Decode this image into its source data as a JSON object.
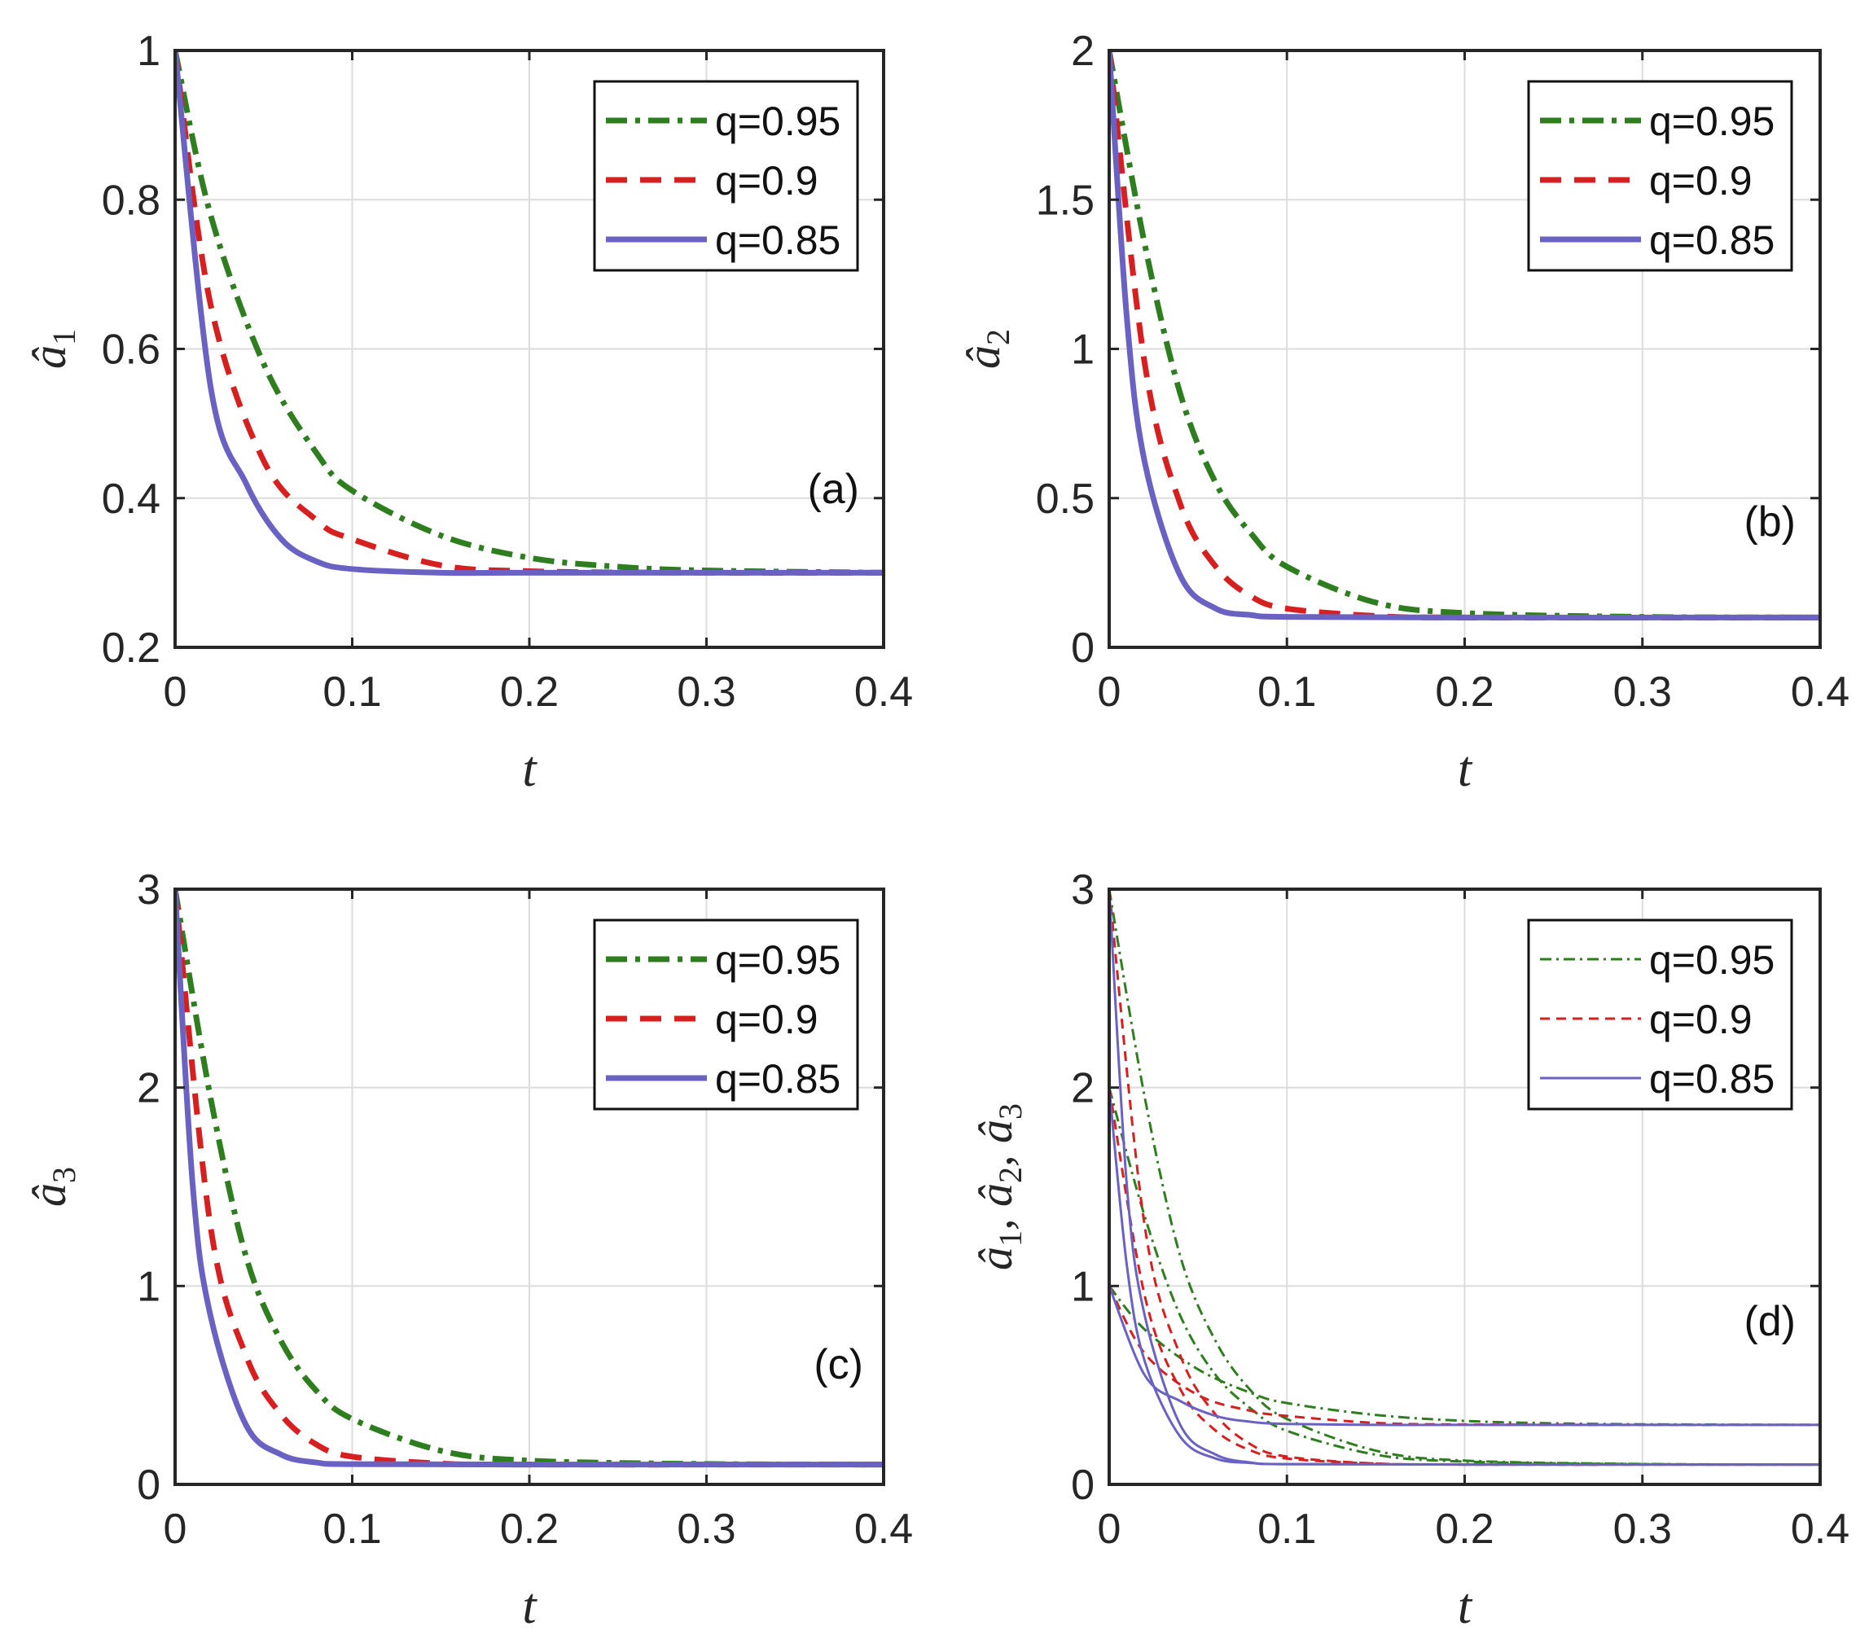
{
  "colors": {
    "q095": "#2e7d1f",
    "q090": "#d62020",
    "q085": "#6a62c2",
    "axis": "#262626",
    "grid": "#dcdcdc"
  },
  "chart_data": [
    {
      "type": "line",
      "panel": "(a)",
      "xlabel": "t",
      "ylabel_base": "â",
      "ylabel_sub": "1",
      "xlim": [
        0,
        0.4
      ],
      "ylim": [
        0.2,
        1
      ],
      "xticks": [
        "0",
        "0.1",
        "0.2",
        "0.3",
        "0.4"
      ],
      "yticks": [
        "0.2",
        "0.4",
        "0.6",
        "0.8",
        "1"
      ],
      "grid": true,
      "legend_position": "top-right",
      "legend": [
        "q=0.95",
        "q=0.9",
        "q=0.85"
      ],
      "series": [
        {
          "name": "q=0.95",
          "style": "dashdot",
          "x": [
            0,
            0.02,
            0.05,
            0.08,
            0.1,
            0.15,
            0.2,
            0.25,
            0.3,
            0.4
          ],
          "y": [
            1,
            0.78,
            0.58,
            0.46,
            0.41,
            0.35,
            0.32,
            0.308,
            0.303,
            0.3
          ]
        },
        {
          "name": "q=0.9",
          "style": "dashed",
          "x": [
            0,
            0.02,
            0.05,
            0.08,
            0.1,
            0.15,
            0.2,
            0.3,
            0.4
          ],
          "y": [
            1,
            0.66,
            0.45,
            0.37,
            0.345,
            0.31,
            0.302,
            0.3,
            0.3
          ]
        },
        {
          "name": "q=0.85",
          "style": "solid",
          "x": [
            0,
            0.02,
            0.04,
            0.06,
            0.08,
            0.1,
            0.15,
            0.2,
            0.4
          ],
          "y": [
            1,
            0.55,
            0.42,
            0.345,
            0.315,
            0.305,
            0.3,
            0.3,
            0.3
          ]
        }
      ]
    },
    {
      "type": "line",
      "panel": "(b)",
      "xlabel": "t",
      "ylabel_base": "â",
      "ylabel_sub": "2",
      "xlim": [
        0,
        0.4
      ],
      "ylim": [
        0,
        2
      ],
      "xticks": [
        "0",
        "0.1",
        "0.2",
        "0.3",
        "0.4"
      ],
      "yticks": [
        "0",
        "0.5",
        "1",
        "1.5",
        "2"
      ],
      "grid": true,
      "legend_position": "top-right",
      "legend": [
        "q=0.95",
        "q=0.9",
        "q=0.85"
      ],
      "series": [
        {
          "name": "q=0.95",
          "style": "dashdot",
          "x": [
            0,
            0.02,
            0.04,
            0.06,
            0.08,
            0.1,
            0.15,
            0.2,
            0.3,
            0.4
          ],
          "y": [
            2,
            1.35,
            0.85,
            0.55,
            0.38,
            0.27,
            0.15,
            0.115,
            0.102,
            0.1
          ]
        },
        {
          "name": "q=0.9",
          "style": "dashed",
          "x": [
            0,
            0.02,
            0.04,
            0.06,
            0.08,
            0.1,
            0.15,
            0.2,
            0.4
          ],
          "y": [
            2,
            0.95,
            0.48,
            0.27,
            0.17,
            0.13,
            0.105,
            0.1,
            0.1
          ]
        },
        {
          "name": "q=0.85",
          "style": "solid",
          "x": [
            0,
            0.01,
            0.02,
            0.04,
            0.06,
            0.08,
            0.1,
            0.2,
            0.4
          ],
          "y": [
            2,
            1.1,
            0.62,
            0.24,
            0.13,
            0.108,
            0.102,
            0.1,
            0.1
          ]
        }
      ]
    },
    {
      "type": "line",
      "panel": "(c)",
      "xlabel": "t",
      "ylabel_base": "â",
      "ylabel_sub": "3",
      "xlim": [
        0,
        0.4
      ],
      "ylim": [
        0,
        3
      ],
      "xticks": [
        "0",
        "0.1",
        "0.2",
        "0.3",
        "0.4"
      ],
      "yticks": [
        "0",
        "1",
        "2",
        "3"
      ],
      "grid": true,
      "legend_position": "top-right",
      "legend": [
        "q=0.95",
        "q=0.9",
        "q=0.85"
      ],
      "series": [
        {
          "name": "q=0.95",
          "style": "dashdot",
          "x": [
            0,
            0.02,
            0.04,
            0.06,
            0.08,
            0.1,
            0.15,
            0.2,
            0.3,
            0.4
          ],
          "y": [
            3,
            1.95,
            1.15,
            0.72,
            0.47,
            0.33,
            0.17,
            0.12,
            0.103,
            0.1
          ]
        },
        {
          "name": "q=0.9",
          "style": "dashed",
          "x": [
            0,
            0.02,
            0.04,
            0.06,
            0.08,
            0.1,
            0.15,
            0.2,
            0.4
          ],
          "y": [
            3,
            1.3,
            0.65,
            0.35,
            0.2,
            0.14,
            0.105,
            0.1,
            0.1
          ]
        },
        {
          "name": "q=0.85",
          "style": "solid",
          "x": [
            0,
            0.01,
            0.02,
            0.04,
            0.06,
            0.08,
            0.1,
            0.2,
            0.4
          ],
          "y": [
            3,
            1.5,
            0.85,
            0.3,
            0.15,
            0.11,
            0.102,
            0.1,
            0.1
          ]
        }
      ]
    },
    {
      "type": "line",
      "panel": "(d)",
      "xlabel": "t",
      "ylabel_parts": [
        "â",
        "1",
        ", â",
        "2",
        ", â",
        "3"
      ],
      "xlim": [
        0,
        0.4
      ],
      "ylim": [
        0,
        3
      ],
      "xticks": [
        "0",
        "0.1",
        "0.2",
        "0.3",
        "0.4"
      ],
      "yticks": [
        "0",
        "1",
        "2",
        "3"
      ],
      "grid": true,
      "legend_position": "top-right",
      "legend": [
        "q=0.95",
        "q=0.9",
        "q=0.85"
      ],
      "series": [
        {
          "name": "q=0.95",
          "variable": "a1",
          "style": "dashdot",
          "x": [
            0,
            0.02,
            0.05,
            0.08,
            0.1,
            0.15,
            0.2,
            0.25,
            0.3,
            0.4
          ],
          "y": [
            1,
            0.78,
            0.58,
            0.46,
            0.41,
            0.35,
            0.32,
            0.308,
            0.303,
            0.3
          ]
        },
        {
          "name": "q=0.95",
          "variable": "a2",
          "style": "dashdot",
          "x": [
            0,
            0.02,
            0.04,
            0.06,
            0.08,
            0.1,
            0.15,
            0.2,
            0.3,
            0.4
          ],
          "y": [
            2,
            1.35,
            0.85,
            0.55,
            0.38,
            0.27,
            0.15,
            0.115,
            0.102,
            0.1
          ]
        },
        {
          "name": "q=0.95",
          "variable": "a3",
          "style": "dashdot",
          "x": [
            0,
            0.02,
            0.04,
            0.06,
            0.08,
            0.1,
            0.15,
            0.2,
            0.3,
            0.4
          ],
          "y": [
            3,
            1.95,
            1.15,
            0.72,
            0.47,
            0.33,
            0.17,
            0.12,
            0.103,
            0.1
          ]
        },
        {
          "name": "q=0.9",
          "variable": "a1",
          "style": "dashed",
          "x": [
            0,
            0.02,
            0.05,
            0.08,
            0.1,
            0.15,
            0.2,
            0.3,
            0.4
          ],
          "y": [
            1,
            0.66,
            0.45,
            0.37,
            0.345,
            0.31,
            0.302,
            0.3,
            0.3
          ]
        },
        {
          "name": "q=0.9",
          "variable": "a2",
          "style": "dashed",
          "x": [
            0,
            0.02,
            0.04,
            0.06,
            0.08,
            0.1,
            0.15,
            0.2,
            0.4
          ],
          "y": [
            2,
            0.95,
            0.48,
            0.27,
            0.17,
            0.13,
            0.105,
            0.1,
            0.1
          ]
        },
        {
          "name": "q=0.9",
          "variable": "a3",
          "style": "dashed",
          "x": [
            0,
            0.02,
            0.04,
            0.06,
            0.08,
            0.1,
            0.15,
            0.2,
            0.4
          ],
          "y": [
            3,
            1.3,
            0.65,
            0.35,
            0.2,
            0.14,
            0.105,
            0.1,
            0.1
          ]
        },
        {
          "name": "q=0.85",
          "variable": "a1",
          "style": "solid",
          "x": [
            0,
            0.02,
            0.04,
            0.06,
            0.08,
            0.1,
            0.15,
            0.2,
            0.4
          ],
          "y": [
            1,
            0.55,
            0.42,
            0.345,
            0.315,
            0.305,
            0.3,
            0.3,
            0.3
          ]
        },
        {
          "name": "q=0.85",
          "variable": "a2",
          "style": "solid",
          "x": [
            0,
            0.01,
            0.02,
            0.04,
            0.06,
            0.08,
            0.1,
            0.2,
            0.4
          ],
          "y": [
            2,
            1.1,
            0.62,
            0.24,
            0.13,
            0.108,
            0.102,
            0.1,
            0.1
          ]
        },
        {
          "name": "q=0.85",
          "variable": "a3",
          "style": "solid",
          "x": [
            0,
            0.01,
            0.02,
            0.04,
            0.06,
            0.08,
            0.1,
            0.2,
            0.4
          ],
          "y": [
            3,
            1.5,
            0.85,
            0.3,
            0.15,
            0.11,
            0.102,
            0.1,
            0.1
          ]
        }
      ]
    }
  ]
}
